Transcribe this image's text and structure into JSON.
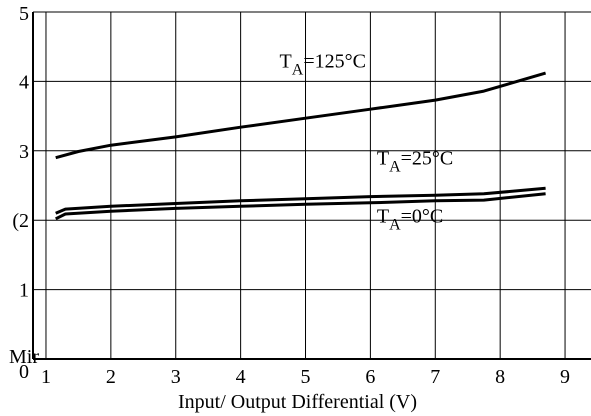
{
  "chart_data": {
    "type": "line",
    "title": "",
    "xlabel": "Input/ Output Differential (V)",
    "ylabel": "Mir",
    "xlim": [
      0.8,
      9.4
    ],
    "ylim": [
      0,
      5
    ],
    "x_ticks": [
      "1",
      "2",
      "3",
      "4",
      "5",
      "6",
      "7",
      "8",
      "9"
    ],
    "y_ticks": [
      "0",
      "1",
      "(2",
      "3",
      "4",
      "5"
    ],
    "grid": true,
    "legend": "none",
    "series": [
      {
        "name": "TA=125°C",
        "x": [
          1.15,
          1.5,
          2,
          3,
          4,
          5,
          6,
          7,
          7.75,
          8.7
        ],
        "y": [
          2.9,
          2.99,
          3.08,
          3.2,
          3.34,
          3.47,
          3.6,
          3.73,
          3.86,
          4.12
        ]
      },
      {
        "name": "TA=25°C",
        "x": [
          1.15,
          1.3,
          2,
          3,
          4,
          5,
          6,
          7,
          7.75,
          8.7
        ],
        "y": [
          2.1,
          2.16,
          2.2,
          2.24,
          2.28,
          2.31,
          2.34,
          2.36,
          2.38,
          2.46
        ]
      },
      {
        "name": "TA=0°C",
        "x": [
          1.15,
          1.3,
          2,
          3,
          4,
          5,
          6,
          7,
          7.75,
          8.7
        ],
        "y": [
          2.02,
          2.09,
          2.13,
          2.17,
          2.2,
          2.23,
          2.25,
          2.28,
          2.29,
          2.38
        ]
      }
    ],
    "annotations": [
      {
        "series": 0,
        "main": "T",
        "sub": "A",
        "rest": "=125°C",
        "at": [
          4.6,
          4.2
        ]
      },
      {
        "series": 1,
        "main": "T",
        "sub": "A",
        "rest": "=25°C",
        "at": [
          6.1,
          2.8
        ]
      },
      {
        "series": 2,
        "main": "T",
        "sub": "A",
        "rest": "=0°C",
        "at": [
          6.1,
          1.97
        ]
      }
    ]
  }
}
